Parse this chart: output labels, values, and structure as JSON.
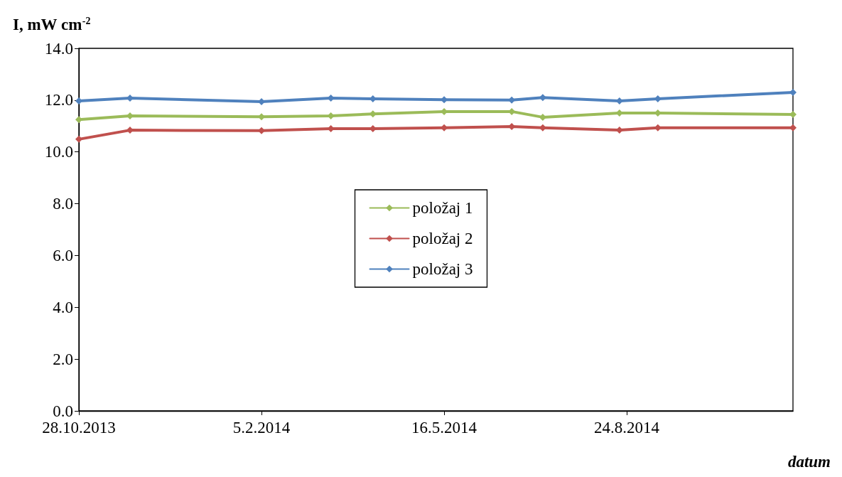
{
  "chart_data": {
    "type": "line",
    "ylabel": "I, mW cm$^{-2}$",
    "xlabel": "datum",
    "x": [
      "2013-10-28",
      "2013-11-25",
      "2014-02-05",
      "2014-03-15",
      "2014-04-07",
      "2014-05-16",
      "2014-06-22",
      "2014-07-09",
      "2014-08-20",
      "2014-09-10",
      "2014-11-23"
    ],
    "series": [
      {
        "name": "položaj 1",
        "color": "#9bbb59",
        "values": [
          11.25,
          11.39,
          11.36,
          11.39,
          11.47,
          11.56,
          11.56,
          11.34,
          11.5,
          11.5,
          11.45
        ]
      },
      {
        "name": "položaj 2",
        "color": "#c0504d",
        "values": [
          10.49,
          10.84,
          10.82,
          10.9,
          10.9,
          10.93,
          10.98,
          10.93,
          10.84,
          10.93,
          10.93
        ]
      },
      {
        "name": "položaj 3",
        "color": "#4f81bd",
        "values": [
          11.97,
          12.08,
          11.94,
          12.08,
          12.05,
          12.02,
          12.0,
          12.1,
          11.97,
          12.05,
          12.3
        ]
      }
    ],
    "xlim": [
      "2013-10-28",
      "2014-11-23"
    ],
    "xticks": [
      {
        "value": "2013-10-28",
        "label": "28.10.2013"
      },
      {
        "value": "2014-02-05",
        "label": "5.2.2014"
      },
      {
        "value": "2014-05-16",
        "label": "16.5.2014"
      },
      {
        "value": "2014-08-24",
        "label": "24.8.2014"
      }
    ],
    "ylim": [
      0,
      14
    ],
    "yticks": [
      {
        "value": 0,
        "label": "0.0"
      },
      {
        "value": 2,
        "label": "2.0"
      },
      {
        "value": 4,
        "label": "4.0"
      },
      {
        "value": 6,
        "label": "6.0"
      },
      {
        "value": 8,
        "label": "8.0"
      },
      {
        "value": 10,
        "label": "10.0"
      },
      {
        "value": 12,
        "label": "12.0"
      },
      {
        "value": 14,
        "label": "14.0"
      }
    ],
    "grid": false,
    "legend": "center",
    "marker": "diamond",
    "line_style": "solid"
  }
}
